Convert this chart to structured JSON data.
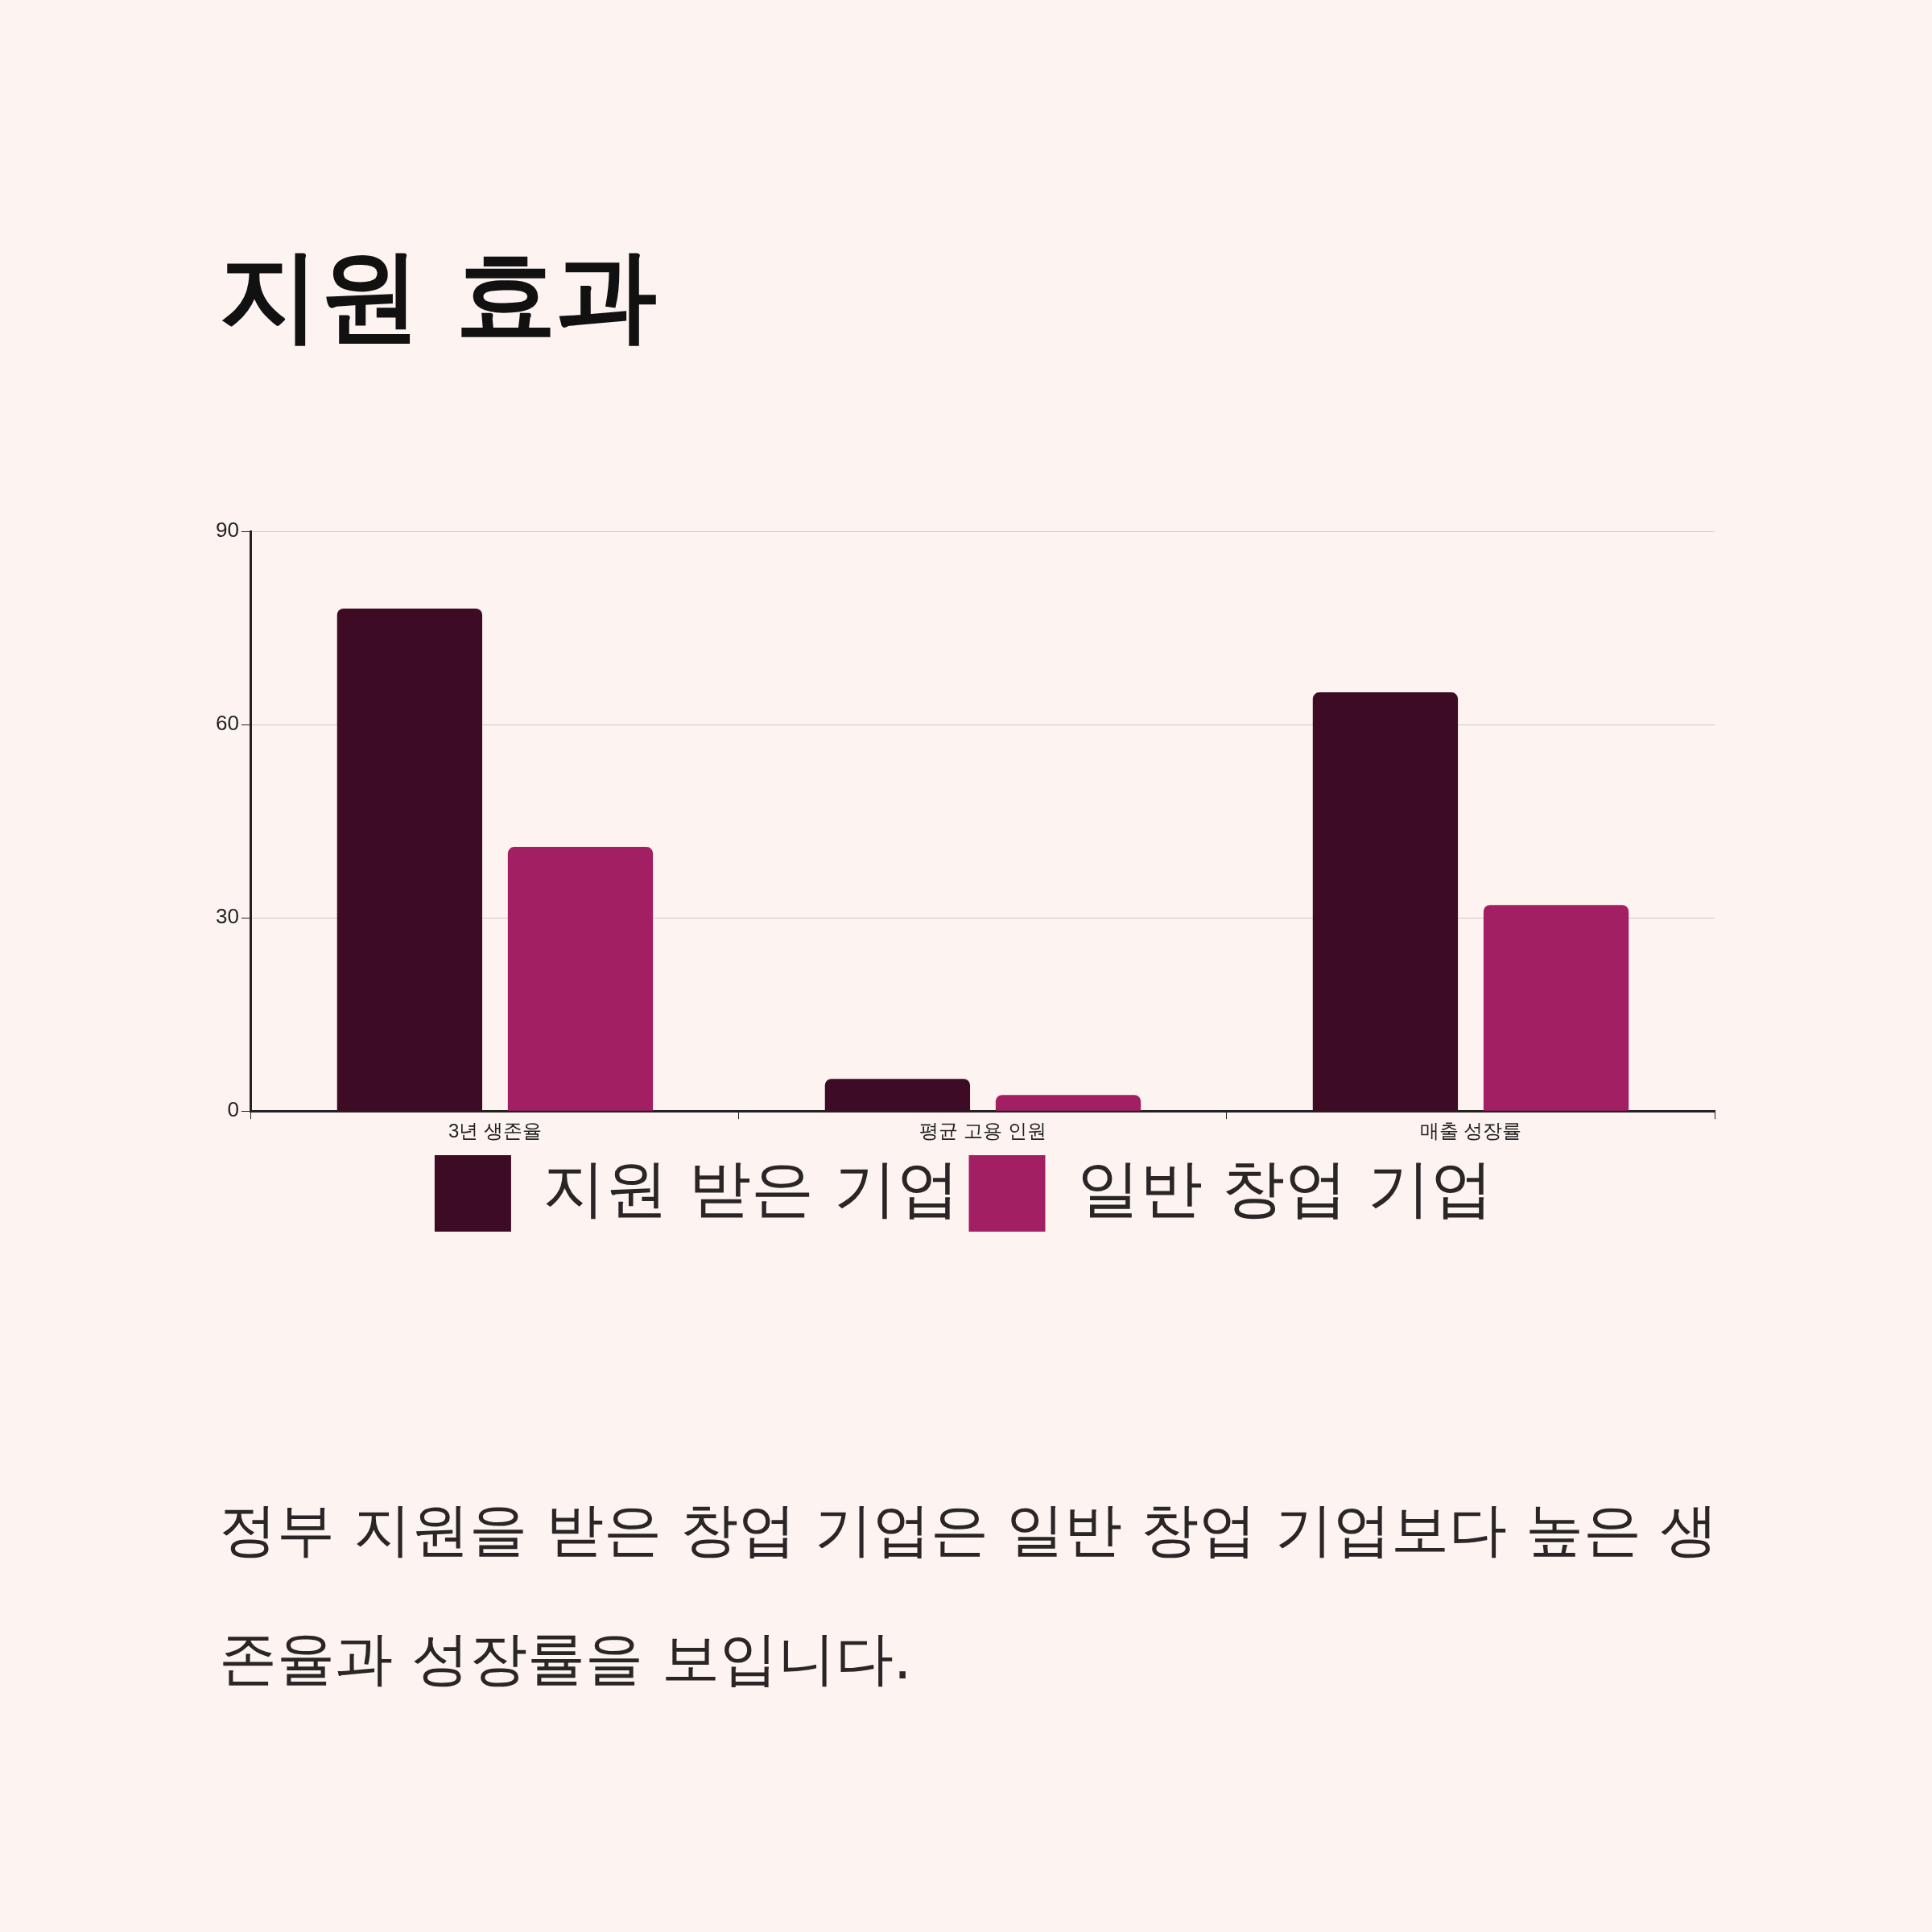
{
  "chart_data": {
    "type": "bar",
    "title": "지원 효과",
    "categories": [
      "3년 생존율",
      "평균 고용 인원",
      "매출 성장률"
    ],
    "series": [
      {
        "name": "지원 받은 기업",
        "color": "#3d0c24",
        "values": [
          78,
          5,
          65
        ]
      },
      {
        "name": "일반 창업 기업",
        "color": "#a21f64",
        "values": [
          41,
          2.5,
          32
        ]
      }
    ],
    "ylim": [
      0,
      90
    ],
    "yticks": [
      0,
      30,
      60,
      90
    ],
    "grid": "y",
    "legend": "bottom",
    "annotations": [
      "정부 지원을 받은 창업 기업은 일반 창업 기업보다 높은 생존율과 성장률을 보입니다."
    ]
  }
}
